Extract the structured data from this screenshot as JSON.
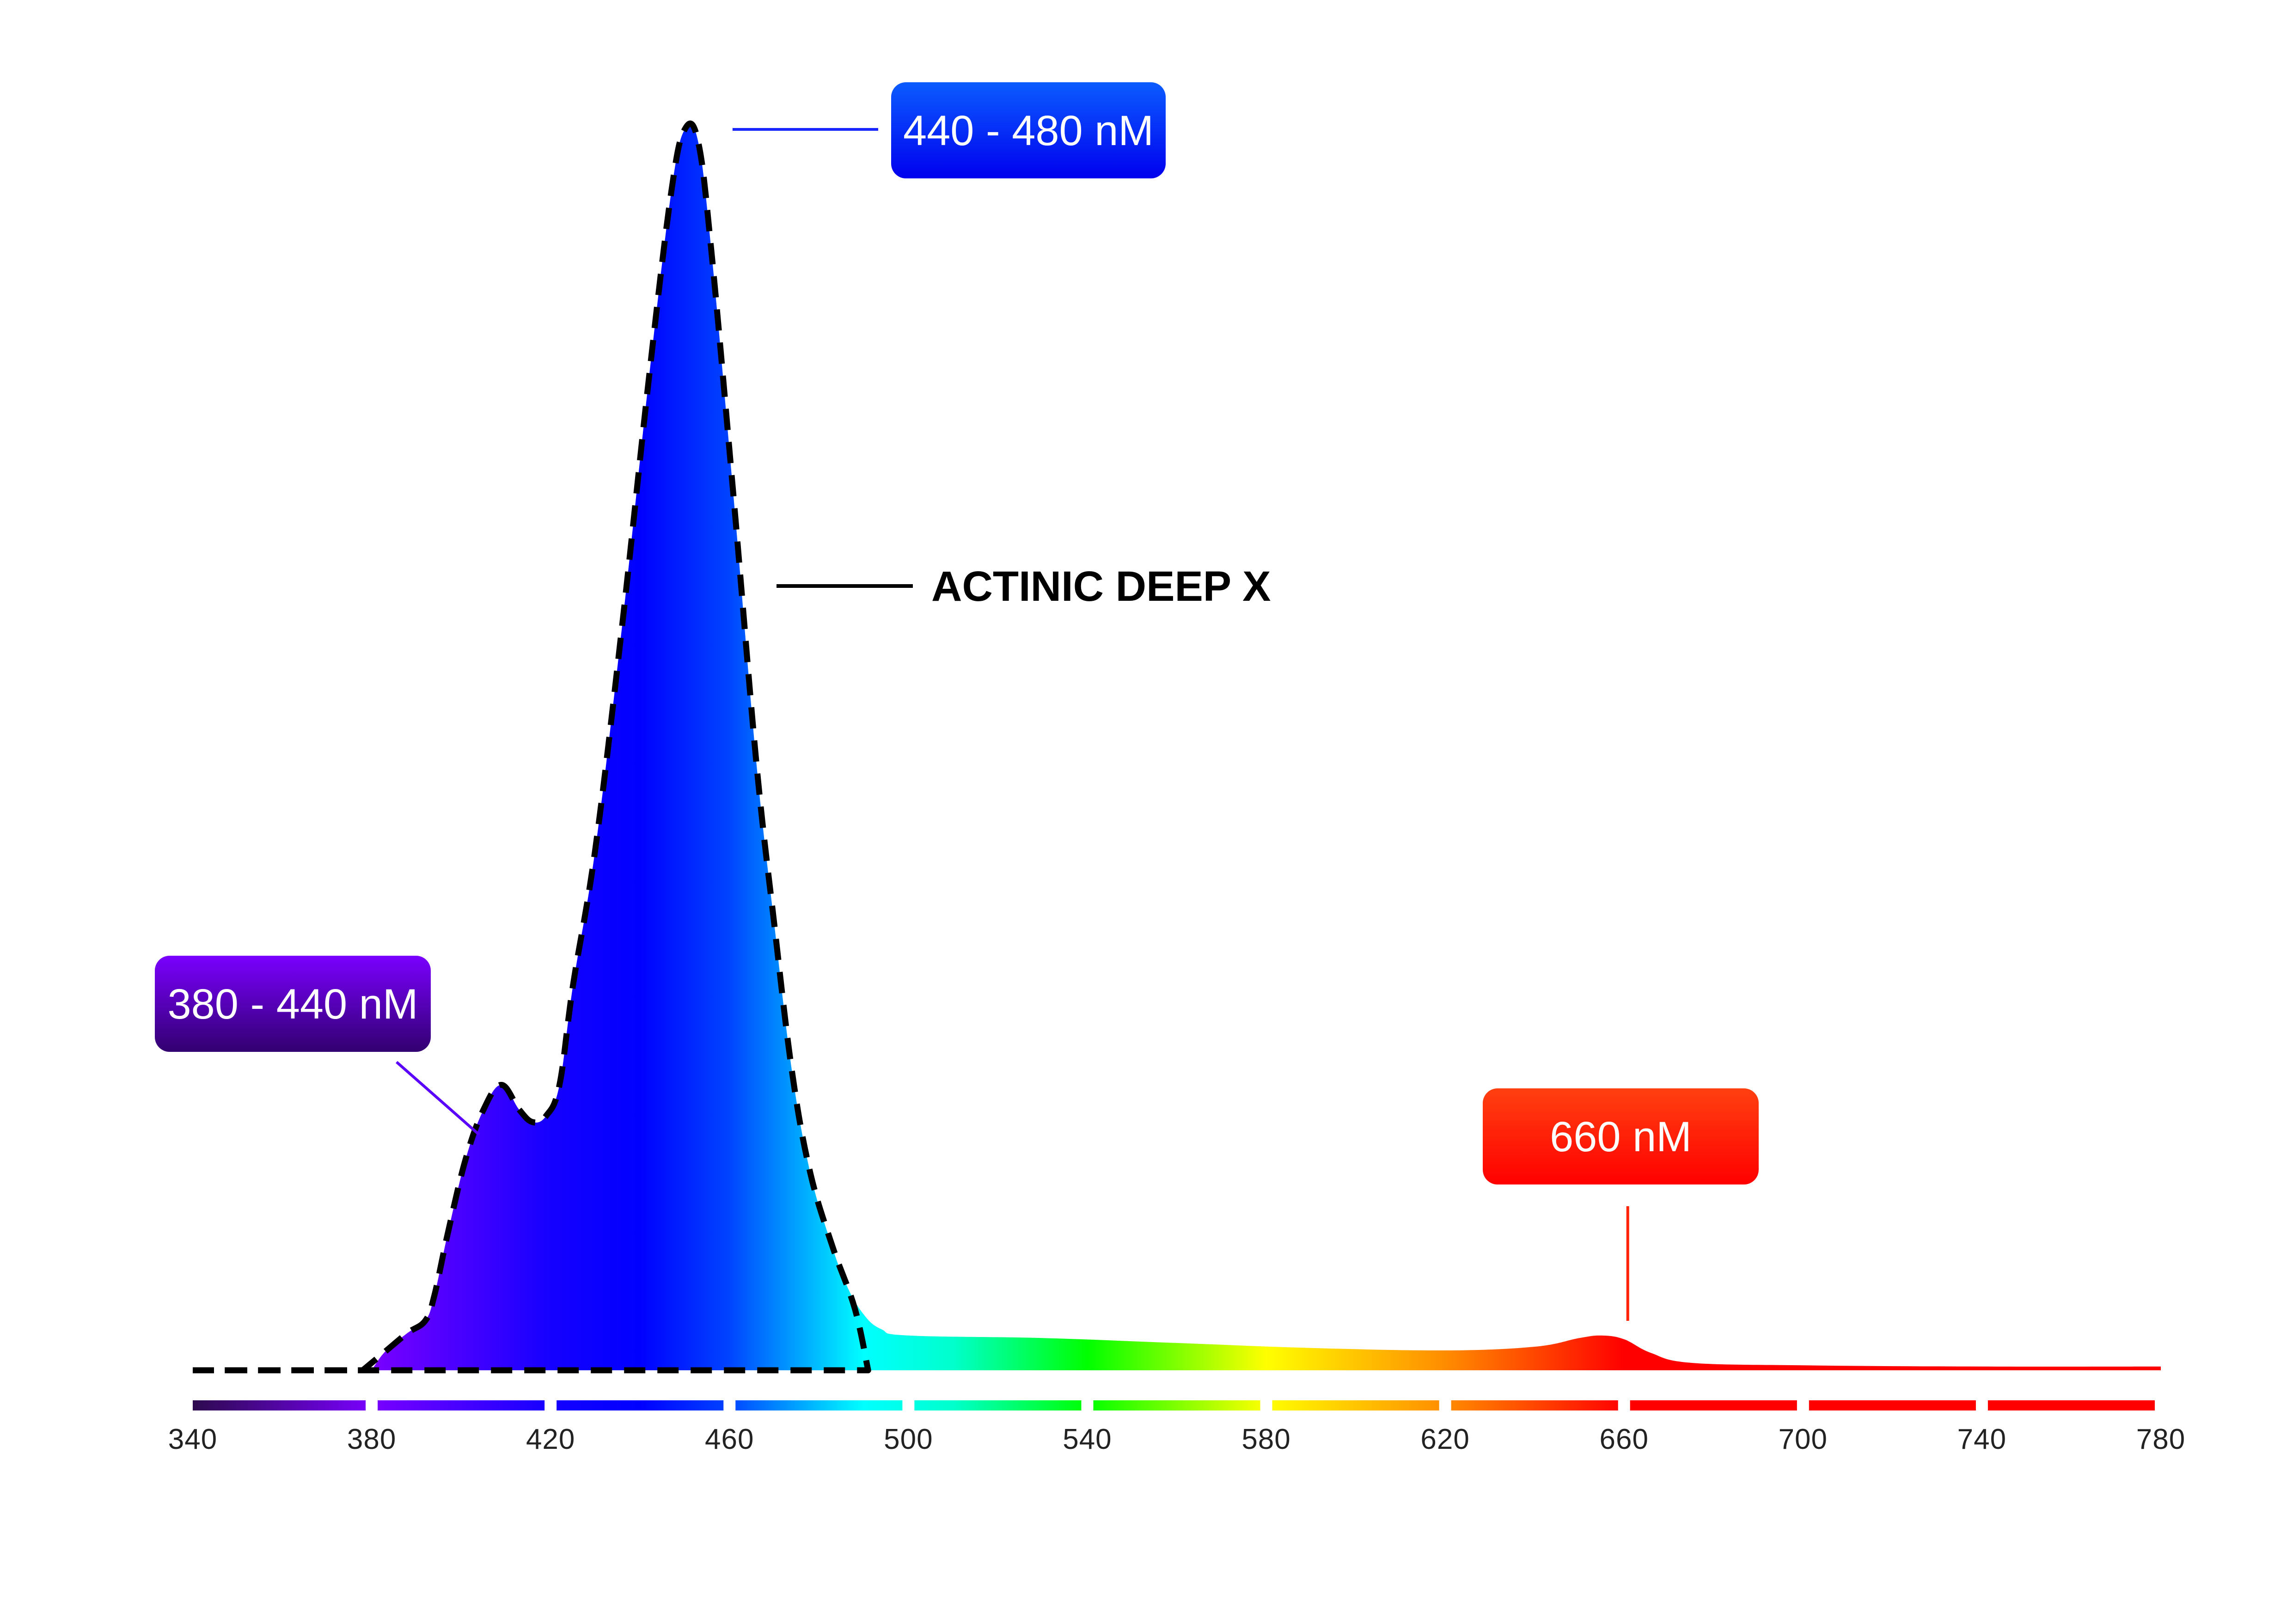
{
  "chart_data": {
    "type": "area",
    "x_axis": {
      "min": 340,
      "max": 780,
      "ticks": [
        340,
        380,
        420,
        460,
        500,
        540,
        580,
        620,
        660,
        700,
        740,
        780
      ],
      "tick_labels": [
        "340",
        "380",
        "420",
        "460",
        "500",
        "540",
        "580",
        "620",
        "660",
        "700",
        "740",
        "780"
      ]
    },
    "y_axis": {
      "min": 0,
      "max": 100,
      "visible": false
    },
    "grid": false,
    "series": [
      {
        "name": "ACTINIC DEEP X",
        "style": "dashed-outline",
        "color": "#000000",
        "points": [
          [
            340,
            0
          ],
          [
            378,
            0
          ],
          [
            383,
            1.5
          ],
          [
            388,
            3
          ],
          [
            392,
            4
          ],
          [
            394,
            6
          ],
          [
            397,
            11
          ],
          [
            401,
            17
          ],
          [
            405,
            21
          ],
          [
            409,
            23
          ],
          [
            413,
            21
          ],
          [
            416,
            20
          ],
          [
            419,
            20.5
          ],
          [
            422,
            23
          ],
          [
            425,
            31
          ],
          [
            430,
            42
          ],
          [
            436,
            60
          ],
          [
            442,
            80
          ],
          [
            447,
            95
          ],
          [
            450,
            100
          ],
          [
            453,
            99
          ],
          [
            456,
            90
          ],
          [
            461,
            70
          ],
          [
            466,
            49
          ],
          [
            470,
            36
          ],
          [
            474,
            24
          ],
          [
            478,
            16
          ],
          [
            483,
            10
          ],
          [
            488,
            5
          ],
          [
            491,
            0
          ]
        ]
      },
      {
        "name": "spectrum",
        "style": "gradient-fill",
        "points": [
          [
            380,
            0
          ],
          [
            383,
            1.5
          ],
          [
            388,
            3
          ],
          [
            392,
            4
          ],
          [
            394,
            6
          ],
          [
            397,
            11
          ],
          [
            401,
            17
          ],
          [
            405,
            21
          ],
          [
            409,
            23
          ],
          [
            413,
            21
          ],
          [
            416,
            20
          ],
          [
            419,
            20.5
          ],
          [
            422,
            23
          ],
          [
            425,
            31
          ],
          [
            430,
            42
          ],
          [
            436,
            60
          ],
          [
            442,
            80
          ],
          [
            447,
            95
          ],
          [
            450,
            100
          ],
          [
            453,
            99
          ],
          [
            456,
            90
          ],
          [
            461,
            70
          ],
          [
            466,
            49
          ],
          [
            470,
            36
          ],
          [
            474,
            24
          ],
          [
            478,
            16
          ],
          [
            482,
            11
          ],
          [
            486,
            7
          ],
          [
            490,
            4.5
          ],
          [
            494,
            3.3
          ],
          [
            500,
            2.8
          ],
          [
            530,
            2.6
          ],
          [
            560,
            2.2
          ],
          [
            590,
            1.8
          ],
          [
            620,
            1.6
          ],
          [
            640,
            1.9
          ],
          [
            650,
            2.6
          ],
          [
            655,
            2.8
          ],
          [
            660,
            2.5
          ],
          [
            666,
            1.4
          ],
          [
            675,
            0.6
          ],
          [
            700,
            0.4
          ],
          [
            740,
            0.3
          ],
          [
            780,
            0.3
          ]
        ]
      }
    ],
    "spectrum_colors": [
      {
        "nm": 340,
        "color": "#2d0a4e"
      },
      {
        "nm": 380,
        "color": "#7a00ff"
      },
      {
        "nm": 420,
        "color": "#1500ff"
      },
      {
        "nm": 440,
        "color": "#0000ff"
      },
      {
        "nm": 460,
        "color": "#0044ff"
      },
      {
        "nm": 490,
        "color": "#00ffff"
      },
      {
        "nm": 510,
        "color": "#00ffcc"
      },
      {
        "nm": 540,
        "color": "#00ff00"
      },
      {
        "nm": 580,
        "color": "#ffff00"
      },
      {
        "nm": 620,
        "color": "#ff8c00"
      },
      {
        "nm": 660,
        "color": "#ff0000"
      },
      {
        "nm": 780,
        "color": "#ff0000"
      }
    ],
    "annotations": [
      {
        "id": "blue-peak",
        "text": "440 - 480 nM",
        "anchor": {
          "nm": 455,
          "value": 100
        },
        "color_top": "#0b5cff",
        "color_bottom": "#0000ee",
        "line_color": "#1a24ff"
      },
      {
        "id": "violet-peak",
        "text": "380 - 440 nM",
        "anchor": {
          "nm": 404,
          "value": 19
        },
        "color_top": "#7a00ff",
        "color_bottom": "#320070",
        "line_color": "#5a00ff"
      },
      {
        "id": "red-peak",
        "text": "660 nM",
        "anchor": {
          "nm": 660,
          "value": 4
        },
        "color_top": "#ff4010",
        "color_bottom": "#ff0000",
        "line_color": "#ff2200"
      },
      {
        "id": "series-label",
        "text": "ACTINIC DEEP X",
        "line_color": "#000000"
      }
    ]
  }
}
